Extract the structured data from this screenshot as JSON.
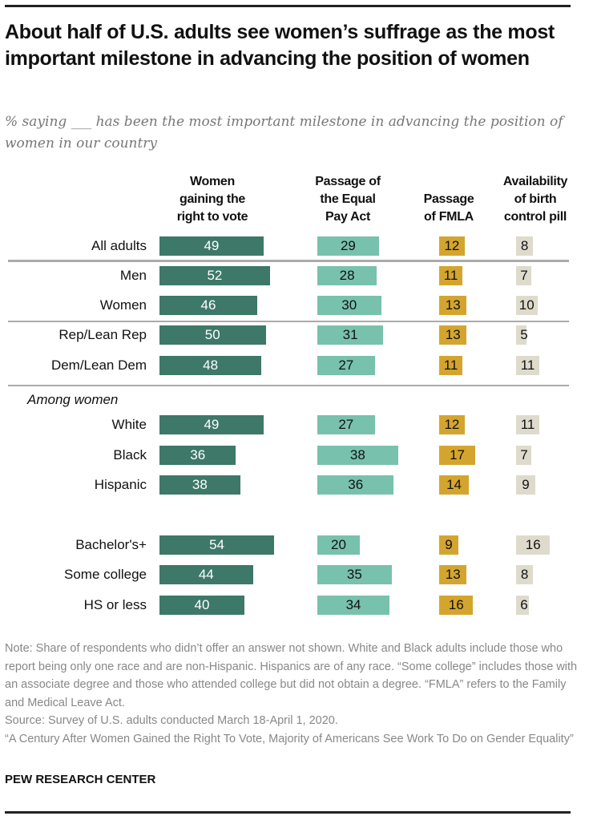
{
  "title": "About half of U.S. adults see women’s suffrage as the most important milestone in advancing the position of women",
  "subtitle": "% saying ___ has been the most important milestone in advancing the position of women in our country",
  "chart_data": {
    "type": "bar",
    "orientation": "horizontal",
    "title": "About half of U.S. adults see women’s suffrage as the most important milestone in advancing the position of women",
    "subtitle": "% saying ___ has been the most important milestone in advancing the position of women in our country",
    "columns": [
      {
        "name": "Women gaining the right to vote",
        "lines": [
          "Women",
          "gaining the",
          "right to vote"
        ],
        "color": "#3d7868",
        "text_color": "#ffffff"
      },
      {
        "name": "Passage of the Equal Pay Act",
        "lines": [
          "Passage of",
          "the Equal",
          "Pay Act"
        ],
        "color": "#78c1ad",
        "text_color": "#111111"
      },
      {
        "name": "Passage of FMLA",
        "lines": [
          "Passage",
          "of FMLA"
        ],
        "color": "#d4a52e",
        "text_color": "#111111"
      },
      {
        "name": "Availability of birth control pill",
        "lines": [
          "Availability",
          "of birth",
          "control pill"
        ],
        "color": "#dedbcc",
        "text_color": "#111111"
      }
    ],
    "group_label": "Among women",
    "categories": [
      "All adults",
      "Men",
      "Women",
      "Rep/Lean Rep",
      "Dem/Lean Dem",
      "White",
      "Black",
      "Hispanic",
      "Bachelor's+",
      "Some college",
      "HS or less"
    ],
    "series": [
      {
        "name": "Women gaining the right to vote",
        "values": [
          49,
          52,
          46,
          50,
          48,
          49,
          36,
          38,
          54,
          44,
          40
        ]
      },
      {
        "name": "Passage of the Equal Pay Act",
        "values": [
          29,
          28,
          30,
          31,
          27,
          27,
          38,
          36,
          20,
          35,
          34
        ]
      },
      {
        "name": "Passage of FMLA",
        "values": [
          12,
          11,
          13,
          13,
          11,
          12,
          17,
          14,
          9,
          13,
          16
        ]
      },
      {
        "name": "Availability of birth control pill",
        "values": [
          8,
          7,
          10,
          5,
          11,
          11,
          7,
          9,
          16,
          8,
          6
        ]
      }
    ],
    "xlim": [
      0,
      100
    ],
    "grid": false,
    "legend": "none"
  },
  "notes": [
    "Note: Share of respondents who didn’t offer an answer not shown. White and Black adults include those who report being only one race and are non-Hispanic. Hispanics are of any race. “Some college” includes those with an associate degree and those who attended college but did not obtain a degree. “FMLA” refers to the Family and Medical Leave Act.",
    "Source: Survey of U.S. adults conducted March 18-April 1, 2020.",
    "“A Century After Women Gained the Right To Vote, Majority of Americans See Work To Do on Gender Equality”"
  ],
  "brand": "PEW RESEARCH CENTER"
}
